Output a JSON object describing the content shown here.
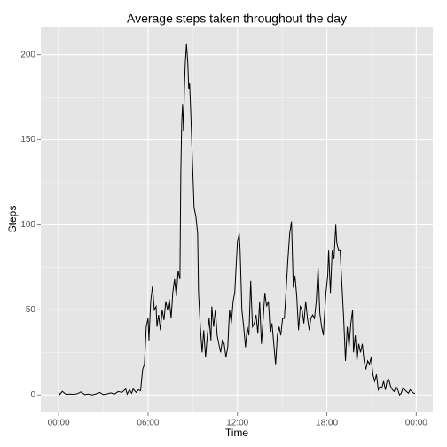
{
  "chart_data": {
    "type": "line",
    "title": "Average steps taken throughout the day",
    "x_label": "Time",
    "y_label": "Steps",
    "color": "#000000",
    "grid": true,
    "xlim": [
      -1.196,
      25.11
    ],
    "ylim": [
      -10.3,
      216.5
    ],
    "xticks": [
      {
        "value": 0,
        "label": "00:00"
      },
      {
        "value": 6,
        "label": "06:00"
      },
      {
        "value": 12,
        "label": "12:00"
      },
      {
        "value": 18,
        "label": "18:00"
      },
      {
        "value": 24,
        "label": "00:00"
      }
    ],
    "yticks": [
      0,
      50,
      100,
      150,
      200
    ],
    "x": [
      0,
      0.08,
      0.25,
      0.5,
      0.75,
      1.0,
      1.25,
      1.5,
      1.75,
      2.0,
      2.25,
      2.5,
      2.75,
      3.0,
      3.25,
      3.5,
      3.75,
      4.0,
      4.25,
      4.5,
      4.6,
      4.75,
      4.9,
      5.0,
      5.2,
      5.35,
      5.5,
      5.64,
      5.76,
      5.88,
      6.0,
      6.06,
      6.18,
      6.3,
      6.42,
      6.54,
      6.6,
      6.71,
      6.83,
      6.95,
      7.07,
      7.19,
      7.31,
      7.43,
      7.55,
      7.66,
      7.78,
      7.9,
      8.02,
      8.14,
      8.2,
      8.26,
      8.32,
      8.38,
      8.44,
      8.5,
      8.58,
      8.67,
      8.73,
      8.79,
      8.85,
      8.97,
      9.09,
      9.21,
      9.33,
      9.39,
      9.51,
      9.63,
      9.74,
      9.86,
      9.98,
      10.1,
      10.22,
      10.28,
      10.4,
      10.52,
      10.64,
      10.75,
      10.87,
      10.99,
      11.11,
      11.23,
      11.35,
      11.47,
      11.59,
      11.71,
      11.82,
      11.88,
      12.0,
      12.12,
      12.18,
      12.3,
      12.42,
      12.54,
      12.66,
      12.77,
      12.89,
      13.01,
      13.13,
      13.25,
      13.37,
      13.49,
      13.61,
      13.73,
      13.84,
      13.96,
      14.08,
      14.2,
      14.32,
      14.44,
      14.56,
      14.68,
      14.8,
      14.91,
      15.03,
      15.15,
      15.27,
      15.39,
      15.51,
      15.63,
      15.75,
      15.86,
      15.98,
      16.1,
      16.22,
      16.34,
      16.46,
      16.58,
      16.7,
      16.82,
      16.93,
      17.05,
      17.17,
      17.29,
      17.41,
      17.53,
      17.65,
      17.77,
      17.83,
      17.94,
      18.06,
      18.12,
      18.24,
      18.36,
      18.48,
      18.6,
      18.66,
      18.78,
      18.89,
      19.01,
      19.13,
      19.25,
      19.37,
      19.49,
      19.61,
      19.73,
      19.79,
      19.91,
      20.02,
      20.14,
      20.26,
      20.38,
      20.5,
      20.62,
      20.74,
      20.86,
      20.97,
      21.09,
      21.21,
      21.33,
      21.45,
      21.57,
      21.69,
      21.81,
      21.93,
      22.04,
      22.16,
      22.28,
      22.4,
      22.52,
      22.64,
      22.76,
      22.88,
      22.99,
      23.11,
      23.23,
      23.35,
      23.47,
      23.59,
      23.71,
      23.83,
      23.92
    ],
    "values": [
      1.7,
      0.3,
      2.1,
      0.3,
      0.5,
      0.3,
      0.7,
      1.8,
      0.2,
      0.5,
      0,
      0.6,
      1.5,
      0.2,
      0.6,
      1.2,
      0.5,
      2.0,
      1.5,
      3.5,
      0.5,
      3.0,
      1,
      3.5,
      1.5,
      3.0,
      2.5,
      15,
      18,
      40,
      45,
      32,
      55,
      64,
      50,
      52,
      40,
      47,
      38,
      50,
      44,
      55,
      50,
      56,
      45,
      60,
      68,
      58,
      73,
      68,
      130,
      160,
      171,
      155,
      180,
      195,
      206.17,
      195,
      180,
      183,
      170,
      140,
      110,
      105,
      95,
      60,
      40,
      25,
      38,
      22,
      35,
      45,
      32,
      52,
      40,
      50,
      35,
      30,
      25,
      32,
      30,
      22,
      28,
      50,
      42,
      55,
      60,
      70,
      90,
      95,
      85,
      50,
      40,
      28,
      40,
      35,
      67,
      40,
      42,
      47,
      36,
      55,
      30,
      45,
      60,
      52,
      55,
      37,
      42,
      30,
      18,
      35,
      40,
      35,
      45,
      45,
      62,
      80,
      95,
      102,
      63,
      70,
      58,
      38,
      52,
      50,
      42,
      55,
      45,
      38,
      45,
      47,
      45,
      55,
      75,
      48,
      40,
      35,
      45,
      60,
      70,
      85,
      60,
      85,
      80,
      100,
      90,
      85,
      85,
      65,
      45,
      20,
      40,
      28,
      42,
      50,
      25,
      35,
      20,
      30,
      25,
      30,
      20,
      15,
      20,
      18,
      22,
      12,
      8,
      12,
      3,
      5,
      4,
      8,
      3,
      8,
      9,
      5,
      3,
      2,
      5,
      3,
      0,
      1,
      4,
      3,
      2,
      1,
      3,
      2,
      1,
      1
    ]
  }
}
